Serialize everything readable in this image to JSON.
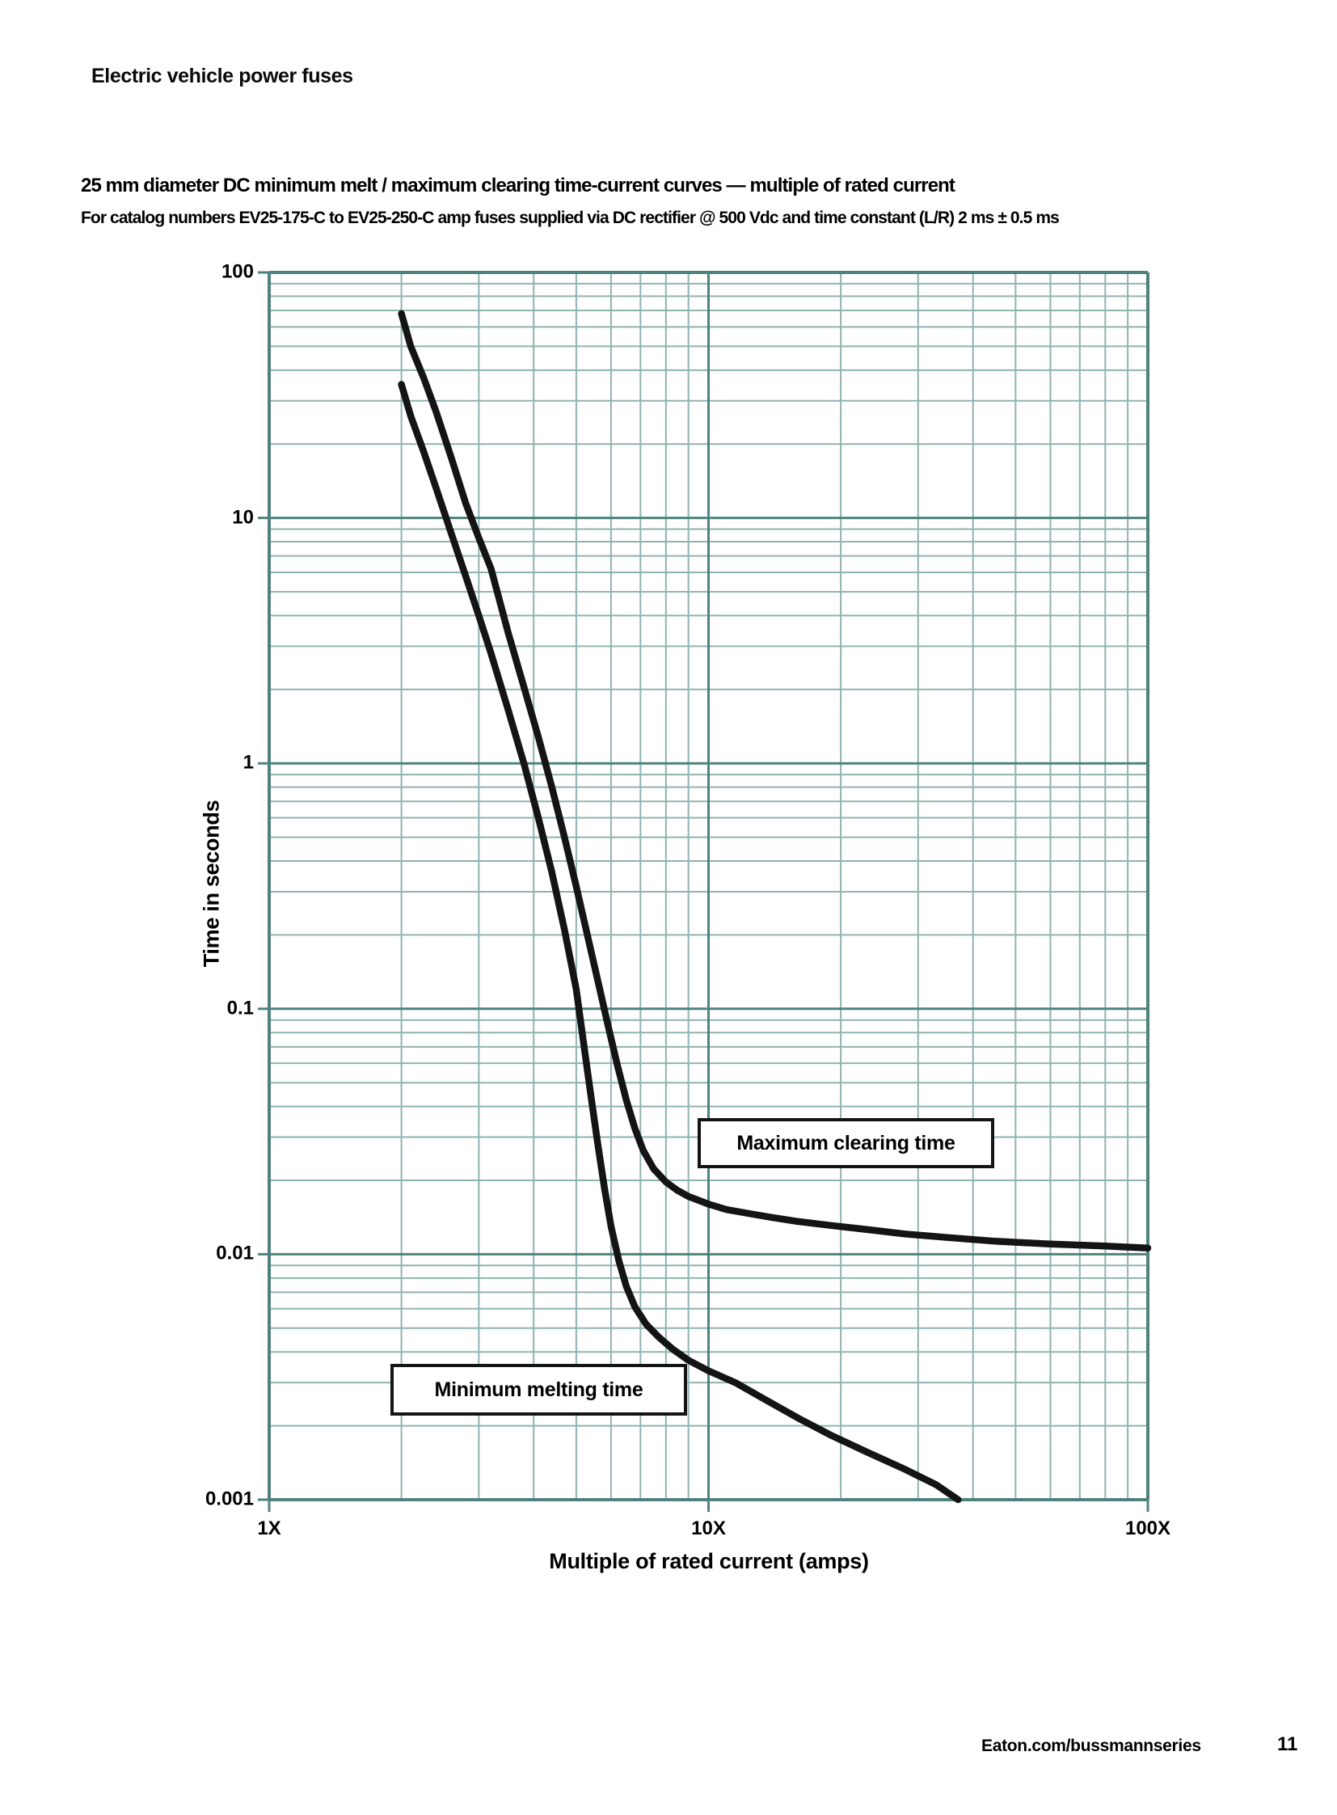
{
  "page": {
    "header": "Electric vehicle power fuses",
    "footer": {
      "url": "Eaton.com/bussmannseries",
      "page_number": "11"
    }
  },
  "chart_data": {
    "type": "line",
    "title": "25 mm diameter DC minimum melt / maximum clearing time-current curves — multiple of rated current",
    "subtitle": "For catalog numbers EV25-175-C to EV25-250-C amp fuses supplied via DC rectifier @ 500 Vdc and time constant (L/R) 2 ms ± 0.5 ms",
    "x_axis": {
      "label": "Multiple of rated current (amps)",
      "scale": "log",
      "min": 1,
      "max": 100,
      "ticks": [
        {
          "label": "1X",
          "value": 1
        },
        {
          "label": "10X",
          "value": 10
        },
        {
          "label": "100X",
          "value": 100
        }
      ]
    },
    "y_axis": {
      "label": "Time in seconds",
      "scale": "log",
      "min": 0.001,
      "max": 100,
      "ticks": [
        {
          "label": "100",
          "value": 100
        },
        {
          "label": "10",
          "value": 10
        },
        {
          "label": "1",
          "value": 1
        },
        {
          "label": "0.1",
          "value": 0.1
        },
        {
          "label": "0.01",
          "value": 0.01
        },
        {
          "label": "0.001",
          "value": 0.001
        }
      ]
    },
    "grid": {
      "minor_lines": true,
      "major_lines": true,
      "legend_position": "none"
    },
    "colors": {
      "grid_minor": "#8fb3b0",
      "grid_major": "#4f827f",
      "axis_spine": "#4f827f",
      "curve": "#141414",
      "annotation_border": "#141414",
      "background": "#ffffff"
    },
    "series": [
      {
        "name": "Maximum clearing time",
        "points": [
          [
            2.0,
            68
          ],
          [
            2.1,
            50
          ],
          [
            2.25,
            37
          ],
          [
            2.4,
            27
          ],
          [
            2.6,
            17.5
          ],
          [
            2.8,
            11.5
          ],
          [
            3.0,
            8.3
          ],
          [
            3.2,
            6.2
          ],
          [
            3.5,
            3.4
          ],
          [
            3.8,
            2.05
          ],
          [
            4.1,
            1.28
          ],
          [
            4.4,
            0.8
          ],
          [
            4.7,
            0.5
          ],
          [
            5.0,
            0.315
          ],
          [
            5.3,
            0.2
          ],
          [
            5.6,
            0.13
          ],
          [
            5.9,
            0.086
          ],
          [
            6.2,
            0.059
          ],
          [
            6.5,
            0.0425
          ],
          [
            6.8,
            0.0325
          ],
          [
            7.1,
            0.0265
          ],
          [
            7.5,
            0.0223
          ],
          [
            8.0,
            0.0197
          ],
          [
            8.5,
            0.0182
          ],
          [
            9.0,
            0.0172
          ],
          [
            10,
            0.016
          ],
          [
            11,
            0.0152
          ],
          [
            12.5,
            0.0146
          ],
          [
            14,
            0.0141
          ],
          [
            16,
            0.0136
          ],
          [
            19,
            0.0131
          ],
          [
            23,
            0.0126
          ],
          [
            28,
            0.0121
          ],
          [
            35,
            0.0117
          ],
          [
            45,
            0.0113
          ],
          [
            60,
            0.011
          ],
          [
            80,
            0.0108
          ],
          [
            100,
            0.0106
          ]
        ]
      },
      {
        "name": "Minimum melting time",
        "points": [
          [
            2.0,
            35
          ],
          [
            2.1,
            26
          ],
          [
            2.25,
            18.5
          ],
          [
            2.4,
            13.2
          ],
          [
            2.6,
            8.6
          ],
          [
            2.8,
            5.8
          ],
          [
            3.0,
            4.0
          ],
          [
            3.2,
            2.8
          ],
          [
            3.5,
            1.65
          ],
          [
            3.8,
            1.0
          ],
          [
            4.1,
            0.6
          ],
          [
            4.4,
            0.36
          ],
          [
            4.7,
            0.21
          ],
          [
            5.0,
            0.12
          ],
          [
            5.2,
            0.072
          ],
          [
            5.4,
            0.044
          ],
          [
            5.6,
            0.028
          ],
          [
            5.8,
            0.0185
          ],
          [
            6.0,
            0.013
          ],
          [
            6.25,
            0.0094
          ],
          [
            6.5,
            0.0074
          ],
          [
            6.8,
            0.0061
          ],
          [
            7.2,
            0.0052
          ],
          [
            7.7,
            0.0046
          ],
          [
            8.3,
            0.0041
          ],
          [
            9.0,
            0.0037
          ],
          [
            10,
            0.00335
          ],
          [
            11.5,
            0.003
          ],
          [
            13.5,
            0.00255
          ],
          [
            16,
            0.00215
          ],
          [
            19,
            0.00183
          ],
          [
            23,
            0.00156
          ],
          [
            28,
            0.00133
          ],
          [
            33,
            0.00115
          ],
          [
            37,
            0.001
          ]
        ]
      }
    ]
  }
}
